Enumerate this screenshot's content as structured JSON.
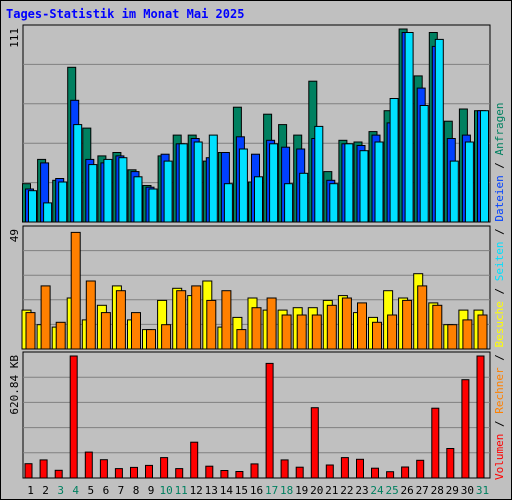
{
  "title": "Tages-Statistik im Monat Mai 2025",
  "colors": {
    "background": "#c0c0c0",
    "grid": "#808080",
    "title": "#0000ff",
    "anfragen": "#008060",
    "dateien": "#0040ff",
    "seiten": "#00e0ff",
    "besuche": "#ffff00",
    "rechner": "#ff8000",
    "volumen": "#ff0000",
    "weekday_label": "#000000",
    "weekend_label": "#008060"
  },
  "chart_data": {
    "type": "bar",
    "categories": [
      "1",
      "2",
      "3",
      "4",
      "5",
      "6",
      "7",
      "8",
      "9",
      "10",
      "11",
      "12",
      "13",
      "14",
      "15",
      "16",
      "17",
      "18",
      "19",
      "20",
      "21",
      "22",
      "23",
      "24",
      "25",
      "26",
      "27",
      "28",
      "29",
      "30",
      "31"
    ],
    "weekend_days": [
      "3",
      "4",
      "10",
      "11",
      "17",
      "18",
      "24",
      "25",
      "31"
    ],
    "panels": [
      {
        "id": "top",
        "ymax_label": "111",
        "ylim": [
          0,
          111
        ],
        "series": [
          {
            "name": "Anfragen",
            "values": [
              22,
              36,
              24,
              89,
              54,
              38,
              40,
              30,
              21,
              38,
              50,
              50,
              35,
              40,
              66,
              23,
              62,
              56,
              50,
              81,
              29,
              47,
              46,
              52,
              64,
              111,
              84,
              109,
              58,
              65,
              64
            ]
          },
          {
            "name": "Dateien",
            "values": [
              19,
              34,
              25,
              70,
              36,
              34,
              38,
              29,
              20,
              39,
              45,
              48,
              37,
              40,
              49,
              39,
              47,
              43,
              42,
              48,
              24,
              45,
              44,
              50,
              57,
              109,
              77,
              101,
              48,
              50,
              64
            ]
          },
          {
            "name": "Seiten",
            "values": [
              18,
              11,
              23,
              56,
              33,
              36,
              37,
              26,
              19,
              35,
              45,
              46,
              50,
              22,
              42,
              26,
              45,
              22,
              28,
              55,
              22,
              45,
              41,
              46,
              71,
              109,
              67,
              105,
              35,
              46,
              64
            ]
          }
        ]
      },
      {
        "id": "middle",
        "ymax_label": "49",
        "ylim": [
          0,
          49
        ],
        "series": [
          {
            "name": "Besuche",
            "values": [
              16,
              10,
              9,
              21,
              12,
              18,
              26,
              12,
              8,
              20,
              25,
              22,
              28,
              9,
              13,
              21,
              16,
              16,
              17,
              17,
              20,
              22,
              15,
              13,
              24,
              21,
              31,
              19,
              10,
              16,
              16
            ]
          },
          {
            "name": "Rechner",
            "values": [
              15,
              26,
              11,
              48,
              28,
              15,
              24,
              15,
              8,
              10,
              24,
              26,
              20,
              24,
              8,
              17,
              21,
              14,
              14,
              14,
              18,
              21,
              19,
              11,
              14,
              20,
              26,
              18,
              10,
              12,
              14
            ]
          }
        ]
      },
      {
        "id": "bottom",
        "ymax_label": "620.84 KB",
        "ylim": [
          0,
          620.84
        ],
        "series": [
          {
            "name": "Volumen",
            "values": [
              73,
              92,
              39,
              620.84,
              132,
              93,
              48,
              54,
              64,
              104,
              48,
              182,
              60,
              38,
              33,
              72,
              583,
              92,
              55,
              358,
              66,
              104,
              95,
              50,
              32,
              56,
              90,
              355,
              150,
              500,
              620.84
            ]
          }
        ]
      }
    ],
    "legend": [
      {
        "label": "Anfragen",
        "color": "#008060"
      },
      {
        "label": "Dateien",
        "color": "#0040ff"
      },
      {
        "label": "Seiten",
        "color": "#00e0ff"
      },
      {
        "label": "Besuche",
        "color": "#ffff00"
      },
      {
        "label": "Rechner",
        "color": "#ff8000"
      },
      {
        "label": "Volumen",
        "color": "#ff0000"
      }
    ],
    "legend_placement": "right",
    "grid": true
  }
}
